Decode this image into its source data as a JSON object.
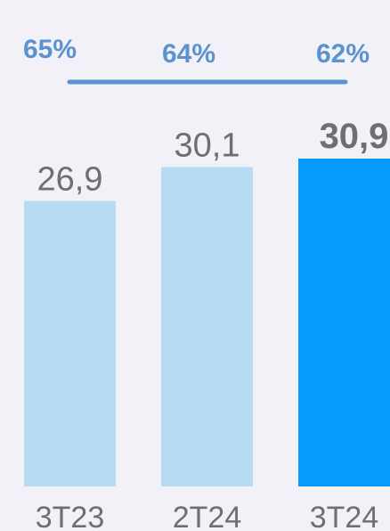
{
  "chart_data": {
    "type": "bar",
    "categories": [
      "3T23",
      "2T24",
      "3T24"
    ],
    "values": [
      26.9,
      30.1,
      30.9
    ],
    "value_labels": [
      "26,9",
      "30,1",
      "30,9"
    ],
    "highlight_index": 2,
    "ylim": [
      0,
      30.9
    ],
    "percentages": [
      "65%",
      "64%",
      "62%"
    ],
    "colors": {
      "bar": "#b5dcf0",
      "bar_highlight": "#069aff",
      "percent_text": "#5a93cf",
      "percent_line": "#5a93cf",
      "value_text": "#6f6f6f",
      "value_text_highlight": "#6f6f6f",
      "category_text": "#6f6f6f",
      "background": "#f2f1f7"
    },
    "title": "",
    "xlabel": "",
    "ylabel": ""
  }
}
